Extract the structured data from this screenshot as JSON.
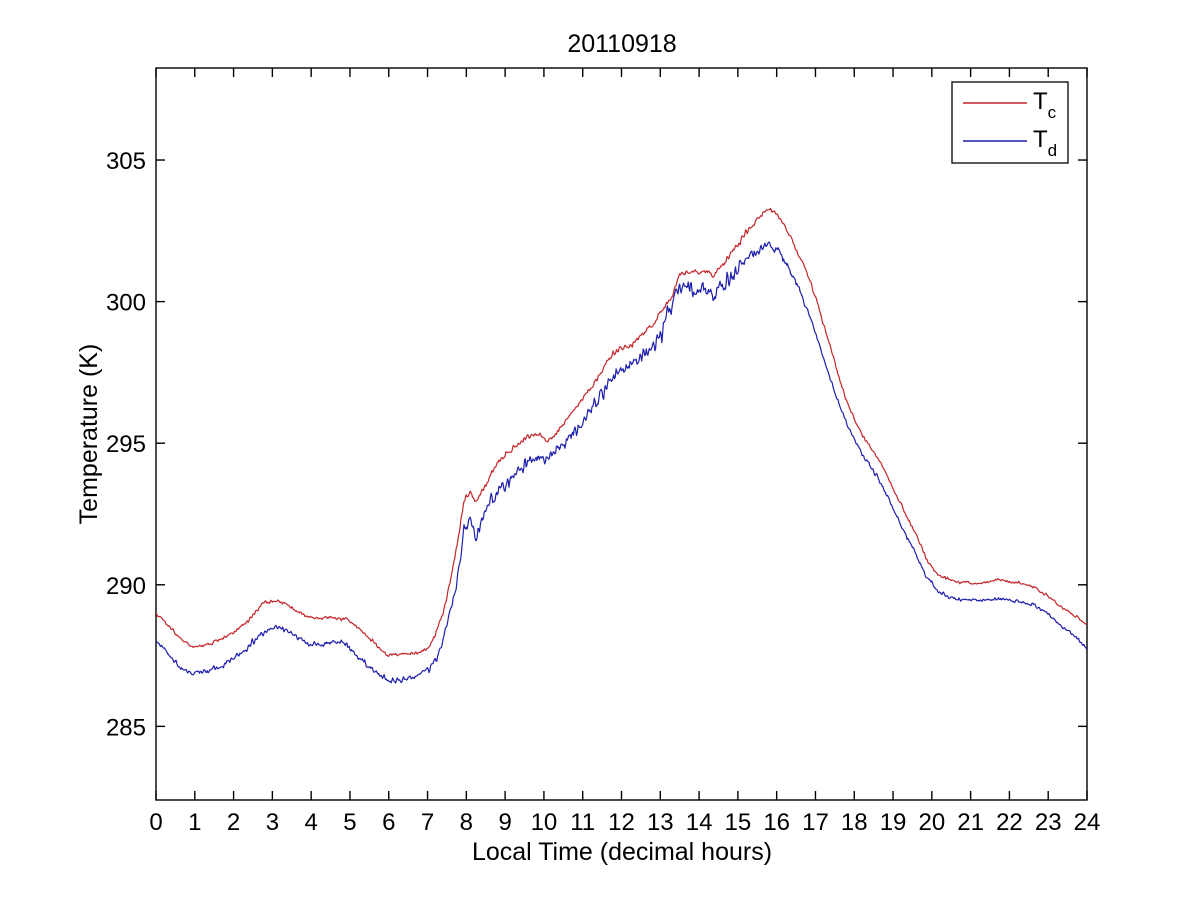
{
  "window": {
    "background": "#ffffff"
  },
  "chart_data": {
    "type": "line",
    "title": "20110918",
    "xlabel": "Local Time (decimal hours)",
    "ylabel": "Temperature (K)",
    "xlim": [
      0,
      24
    ],
    "ylim": [
      282.4,
      308.25
    ],
    "xticks": [
      0,
      1,
      2,
      3,
      4,
      5,
      6,
      7,
      8,
      9,
      10,
      11,
      12,
      13,
      14,
      15,
      16,
      17,
      18,
      19,
      20,
      21,
      22,
      23,
      24
    ],
    "yticks": [
      285,
      290,
      295,
      300,
      305
    ],
    "grid": false,
    "box": true,
    "axis_color": "#000000",
    "legend": {
      "position": "top-right",
      "entries": [
        {
          "name": "T_c",
          "main": "T",
          "sub": "c",
          "color": "#c4262b"
        },
        {
          "name": "T_d",
          "main": "T",
          "sub": "d",
          "color": "#1f1fae"
        }
      ]
    },
    "sampling": {
      "step_hours": 0.02,
      "noise_seed": 20110918,
      "noise_gain": 2.6
    },
    "series": [
      {
        "name": "T_c",
        "color": "#c4262b",
        "anchors": [
          [
            0,
            289.0,
            0.04
          ],
          [
            0.3,
            288.6,
            0.04
          ],
          [
            0.6,
            288.15,
            0.04
          ],
          [
            0.95,
            287.8,
            0.04
          ],
          [
            1.25,
            287.85,
            0.04
          ],
          [
            1.6,
            288.05,
            0.04
          ],
          [
            2.0,
            288.3,
            0.05
          ],
          [
            2.4,
            288.75,
            0.05
          ],
          [
            2.75,
            289.35,
            0.04
          ],
          [
            3.1,
            289.45,
            0.04
          ],
          [
            3.35,
            289.35,
            0.04
          ],
          [
            3.65,
            289.05,
            0.04
          ],
          [
            3.95,
            288.85,
            0.04
          ],
          [
            4.25,
            288.8,
            0.04
          ],
          [
            4.55,
            288.85,
            0.04
          ],
          [
            4.9,
            288.8,
            0.04
          ],
          [
            5.2,
            288.5,
            0.04
          ],
          [
            5.6,
            288.0,
            0.04
          ],
          [
            5.95,
            287.5,
            0.04
          ],
          [
            6.35,
            287.55,
            0.04
          ],
          [
            6.7,
            287.6,
            0.04
          ],
          [
            7.0,
            287.75,
            0.04
          ],
          [
            7.2,
            288.2,
            0.05
          ],
          [
            7.45,
            289.3,
            0.06
          ],
          [
            7.7,
            290.9,
            0.06
          ],
          [
            7.95,
            293.0,
            0.07
          ],
          [
            8.1,
            293.3,
            0.07
          ],
          [
            8.25,
            292.9,
            0.07
          ],
          [
            8.45,
            293.4,
            0.07
          ],
          [
            8.8,
            294.3,
            0.06
          ],
          [
            9.1,
            294.7,
            0.06
          ],
          [
            9.4,
            295.05,
            0.06
          ],
          [
            9.6,
            295.25,
            0.06
          ],
          [
            9.9,
            295.3,
            0.06
          ],
          [
            10.1,
            295.05,
            0.06
          ],
          [
            10.5,
            295.65,
            0.06
          ],
          [
            10.9,
            296.4,
            0.06
          ],
          [
            11.3,
            297.1,
            0.06
          ],
          [
            11.65,
            297.95,
            0.06
          ],
          [
            11.9,
            298.3,
            0.06
          ],
          [
            12.2,
            298.4,
            0.06
          ],
          [
            12.5,
            298.8,
            0.06
          ],
          [
            12.8,
            299.2,
            0.06
          ],
          [
            13.05,
            299.7,
            0.07
          ],
          [
            13.3,
            300.2,
            0.07
          ],
          [
            13.5,
            301.0,
            0.07
          ],
          [
            13.7,
            301.05,
            0.06
          ],
          [
            14.0,
            301.0,
            0.06
          ],
          [
            14.2,
            301.1,
            0.06
          ],
          [
            14.35,
            300.9,
            0.06
          ],
          [
            14.6,
            301.3,
            0.07
          ],
          [
            14.9,
            301.8,
            0.07
          ],
          [
            15.2,
            302.4,
            0.07
          ],
          [
            15.5,
            302.9,
            0.06
          ],
          [
            15.8,
            303.3,
            0.05
          ],
          [
            16.05,
            303.0,
            0.05
          ],
          [
            16.35,
            302.3,
            0.05
          ],
          [
            16.6,
            301.6,
            0.05
          ],
          [
            16.85,
            300.8,
            0.05
          ],
          [
            17.1,
            299.7,
            0.05
          ],
          [
            17.3,
            298.8,
            0.04
          ],
          [
            17.55,
            297.6,
            0.04
          ],
          [
            17.8,
            296.5,
            0.04
          ],
          [
            18.05,
            295.7,
            0.04
          ],
          [
            18.25,
            295.2,
            0.04
          ],
          [
            18.55,
            294.6,
            0.04
          ],
          [
            18.8,
            294.0,
            0.04
          ],
          [
            19.1,
            293.1,
            0.04
          ],
          [
            19.4,
            292.3,
            0.04
          ],
          [
            19.65,
            291.6,
            0.04
          ],
          [
            19.9,
            290.8,
            0.04
          ],
          [
            20.15,
            290.35,
            0.04
          ],
          [
            20.4,
            290.2,
            0.04
          ],
          [
            20.7,
            290.1,
            0.03
          ],
          [
            21.1,
            290.05,
            0.03
          ],
          [
            21.45,
            290.1,
            0.03
          ],
          [
            21.7,
            290.2,
            0.03
          ],
          [
            22.0,
            290.1,
            0.03
          ],
          [
            22.3,
            290.05,
            0.03
          ],
          [
            22.65,
            289.9,
            0.03
          ],
          [
            23.0,
            289.6,
            0.03
          ],
          [
            23.35,
            289.2,
            0.03
          ],
          [
            23.7,
            288.9,
            0.03
          ],
          [
            24,
            288.6,
            0.03
          ]
        ]
      },
      {
        "name": "T_d",
        "color": "#1f1fae",
        "anchors": [
          [
            0,
            288.0,
            0.06
          ],
          [
            0.3,
            287.6,
            0.06
          ],
          [
            0.6,
            287.1,
            0.06
          ],
          [
            0.95,
            286.9,
            0.06
          ],
          [
            1.3,
            286.95,
            0.06
          ],
          [
            1.65,
            287.1,
            0.07
          ],
          [
            2.0,
            287.4,
            0.07
          ],
          [
            2.4,
            287.85,
            0.07
          ],
          [
            2.8,
            288.35,
            0.06
          ],
          [
            3.1,
            288.5,
            0.06
          ],
          [
            3.35,
            288.4,
            0.06
          ],
          [
            3.65,
            288.1,
            0.06
          ],
          [
            3.95,
            287.9,
            0.06
          ],
          [
            4.25,
            287.85,
            0.06
          ],
          [
            4.6,
            288.0,
            0.06
          ],
          [
            4.9,
            287.9,
            0.06
          ],
          [
            5.2,
            287.5,
            0.06
          ],
          [
            5.6,
            287.0,
            0.06
          ],
          [
            6.0,
            286.6,
            0.06
          ],
          [
            6.4,
            286.65,
            0.06
          ],
          [
            6.75,
            286.8,
            0.06
          ],
          [
            7.05,
            287.0,
            0.06
          ],
          [
            7.25,
            287.4,
            0.08
          ],
          [
            7.5,
            288.6,
            0.1
          ],
          [
            7.75,
            290.0,
            0.12
          ],
          [
            7.95,
            292.0,
            0.12
          ],
          [
            8.1,
            292.2,
            0.12
          ],
          [
            8.25,
            291.6,
            0.12
          ],
          [
            8.45,
            292.5,
            0.14
          ],
          [
            8.8,
            293.3,
            0.14
          ],
          [
            9.1,
            293.7,
            0.14
          ],
          [
            9.4,
            294.15,
            0.14
          ],
          [
            9.6,
            294.4,
            0.14
          ],
          [
            9.9,
            294.45,
            0.14
          ],
          [
            10.1,
            294.5,
            0.14
          ],
          [
            10.5,
            294.9,
            0.14
          ],
          [
            10.9,
            295.6,
            0.15
          ],
          [
            11.3,
            296.3,
            0.15
          ],
          [
            11.65,
            297.1,
            0.15
          ],
          [
            11.9,
            297.5,
            0.15
          ],
          [
            12.2,
            297.7,
            0.15
          ],
          [
            12.5,
            298.0,
            0.15
          ],
          [
            12.8,
            298.4,
            0.16
          ],
          [
            13.0,
            298.7,
            0.18
          ],
          [
            13.15,
            299.3,
            0.22
          ],
          [
            13.4,
            300.3,
            0.22
          ],
          [
            13.7,
            300.4,
            0.2
          ],
          [
            14.0,
            300.3,
            0.2
          ],
          [
            14.2,
            300.5,
            0.2
          ],
          [
            14.35,
            300.2,
            0.2
          ],
          [
            14.6,
            300.6,
            0.18
          ],
          [
            14.9,
            301.0,
            0.16
          ],
          [
            15.2,
            301.5,
            0.14
          ],
          [
            15.5,
            301.8,
            0.12
          ],
          [
            15.8,
            302.05,
            0.1
          ],
          [
            16.05,
            301.8,
            0.09
          ],
          [
            16.35,
            301.1,
            0.08
          ],
          [
            16.6,
            300.4,
            0.07
          ],
          [
            16.85,
            299.5,
            0.07
          ],
          [
            17.1,
            298.5,
            0.06
          ],
          [
            17.3,
            297.6,
            0.06
          ],
          [
            17.55,
            296.6,
            0.05
          ],
          [
            17.8,
            295.7,
            0.05
          ],
          [
            18.05,
            295.0,
            0.05
          ],
          [
            18.25,
            294.5,
            0.05
          ],
          [
            18.55,
            293.9,
            0.05
          ],
          [
            18.8,
            293.3,
            0.05
          ],
          [
            19.1,
            292.4,
            0.05
          ],
          [
            19.4,
            291.6,
            0.05
          ],
          [
            19.65,
            290.9,
            0.05
          ],
          [
            19.9,
            290.2,
            0.05
          ],
          [
            20.15,
            289.8,
            0.05
          ],
          [
            20.4,
            289.6,
            0.04
          ],
          [
            20.7,
            289.5,
            0.04
          ],
          [
            21.1,
            289.45,
            0.04
          ],
          [
            21.45,
            289.45,
            0.04
          ],
          [
            21.7,
            289.5,
            0.04
          ],
          [
            22.0,
            289.45,
            0.04
          ],
          [
            22.3,
            289.4,
            0.04
          ],
          [
            22.65,
            289.3,
            0.04
          ],
          [
            23.0,
            288.95,
            0.04
          ],
          [
            23.35,
            288.55,
            0.04
          ],
          [
            23.7,
            288.15,
            0.04
          ],
          [
            24,
            287.75,
            0.04
          ]
        ]
      }
    ]
  }
}
